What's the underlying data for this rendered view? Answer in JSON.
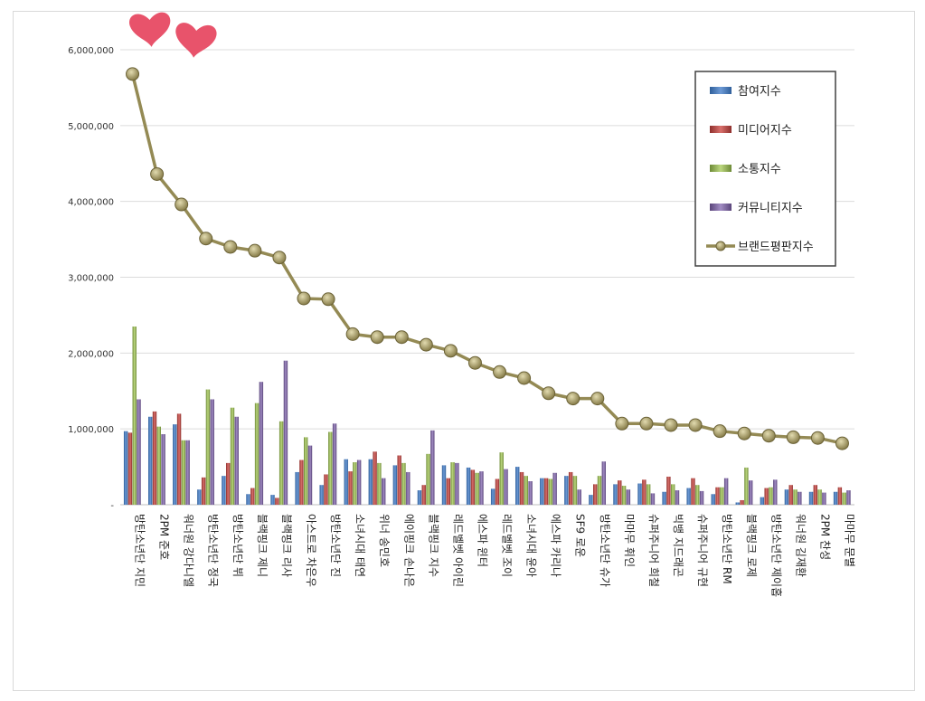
{
  "chart_data": {
    "type": "bar",
    "title": "",
    "xlabel": "",
    "ylabel": "",
    "ylim": [
      0,
      6000000
    ],
    "yticks": [
      0,
      1000000,
      2000000,
      3000000,
      4000000,
      5000000,
      6000000
    ],
    "ytick_labels": [
      "-",
      "1,000,000",
      "2,000,000",
      "3,000,000",
      "4,000,000",
      "5,000,000",
      "6,000,000"
    ],
    "grid": true,
    "legend_position": "top-right",
    "categories": [
      "방탄소년단 지민",
      "2PM 준호",
      "워너원 강다니엘",
      "방탄소년단 정국",
      "방탄소년단 뷔",
      "블랙핑크 제니",
      "블랙핑크 리사",
      "아스트로 차은우",
      "방탄소년단 진",
      "소녀시대 태연",
      "위너 송민호",
      "에이핑크 손나은",
      "블랙핑크 지수",
      "레드벨벳 아이린",
      "에스파 윈터",
      "레드벨벳 조이",
      "소녀시대 윤아",
      "에스파 카리나",
      "SF9 로운",
      "방탄소년단 슈가",
      "마마무 휘인",
      "슈퍼주니어 희철",
      "빅뱅 지드래곤",
      "슈퍼주니어 규현",
      "방탄소년단 RM",
      "블랙핑크 로제",
      "방탄소년단 제이홉",
      "워너원 김재환",
      "2PM 찬성",
      "마마무 문별"
    ],
    "series": [
      {
        "name": "참여지수",
        "type": "bar",
        "color": "#4f81bd",
        "values": [
          970000,
          1160000,
          1060000,
          200000,
          380000,
          140000,
          130000,
          430000,
          260000,
          600000,
          600000,
          520000,
          190000,
          520000,
          490000,
          210000,
          500000,
          350000,
          380000,
          130000,
          270000,
          280000,
          170000,
          220000,
          140000,
          30000,
          100000,
          200000,
          170000,
          170000
        ]
      },
      {
        "name": "미디어지수",
        "type": "bar",
        "color": "#c0504d",
        "values": [
          950000,
          1230000,
          1200000,
          360000,
          550000,
          220000,
          90000,
          590000,
          400000,
          440000,
          700000,
          650000,
          260000,
          350000,
          460000,
          340000,
          430000,
          350000,
          430000,
          270000,
          320000,
          330000,
          370000,
          350000,
          230000,
          60000,
          220000,
          260000,
          260000,
          230000
        ]
      },
      {
        "name": "소통지수",
        "type": "bar",
        "color": "#9bbb59",
        "values": [
          2350000,
          1030000,
          850000,
          1520000,
          1280000,
          1340000,
          1100000,
          890000,
          960000,
          560000,
          550000,
          550000,
          670000,
          560000,
          420000,
          690000,
          380000,
          340000,
          380000,
          380000,
          250000,
          270000,
          270000,
          260000,
          230000,
          490000,
          230000,
          200000,
          200000,
          160000
        ]
      },
      {
        "name": "커뮤니티지수",
        "type": "bar",
        "color": "#8064a2",
        "values": [
          1390000,
          930000,
          850000,
          1390000,
          1160000,
          1620000,
          1900000,
          780000,
          1070000,
          590000,
          350000,
          430000,
          980000,
          550000,
          440000,
          470000,
          310000,
          420000,
          200000,
          570000,
          200000,
          150000,
          190000,
          180000,
          350000,
          320000,
          330000,
          170000,
          160000,
          190000
        ]
      },
      {
        "name": "브랜드평판지수",
        "type": "line",
        "color": "#948a54",
        "values": [
          5680000,
          4360000,
          3960000,
          3510000,
          3400000,
          3350000,
          3260000,
          2720000,
          2710000,
          2250000,
          2210000,
          2210000,
          2110000,
          2030000,
          1870000,
          1750000,
          1670000,
          1470000,
          1400000,
          1400000,
          1070000,
          1070000,
          1050000,
          1050000,
          970000,
          940000,
          910000,
          890000,
          880000,
          810000
        ]
      }
    ]
  },
  "decorations": {
    "heart_color": "#e8536b",
    "heart_count": 2
  }
}
